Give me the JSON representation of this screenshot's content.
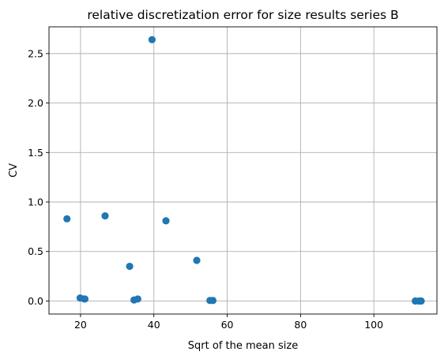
{
  "chart_data": {
    "type": "scatter",
    "title": "relative discretization error for size results series B",
    "xlabel": "Sqrt of the mean size",
    "ylabel": "CV",
    "xlim": [
      11.4,
      117.2
    ],
    "ylim": [
      -0.132,
      2.77
    ],
    "xticks": [
      20,
      40,
      60,
      80,
      100
    ],
    "xtick_labels": [
      "20",
      "40",
      "60",
      "80",
      "100"
    ],
    "yticks": [
      0.0,
      0.5,
      1.0,
      1.5,
      2.0,
      2.5
    ],
    "ytick_labels": [
      "0.0",
      "0.5",
      "1.0",
      "1.5",
      "2.0",
      "2.5"
    ],
    "grid": true,
    "marker_color": "#1f77b4",
    "points": [
      {
        "x": 16.3,
        "y": 0.83
      },
      {
        "x": 19.9,
        "y": 0.03
      },
      {
        "x": 21.0,
        "y": 0.02
      },
      {
        "x": 21.2,
        "y": 0.02
      },
      {
        "x": 26.7,
        "y": 0.86
      },
      {
        "x": 33.4,
        "y": 0.35
      },
      {
        "x": 34.6,
        "y": 0.01
      },
      {
        "x": 35.6,
        "y": 0.02
      },
      {
        "x": 39.5,
        "y": 2.64
      },
      {
        "x": 43.3,
        "y": 0.81
      },
      {
        "x": 51.7,
        "y": 0.41
      },
      {
        "x": 55.3,
        "y": 0.005
      },
      {
        "x": 56.1,
        "y": 0.005
      },
      {
        "x": 111.3,
        "y": 0.0
      },
      {
        "x": 112.3,
        "y": 0.0
      },
      {
        "x": 112.9,
        "y": 0.0
      }
    ]
  }
}
